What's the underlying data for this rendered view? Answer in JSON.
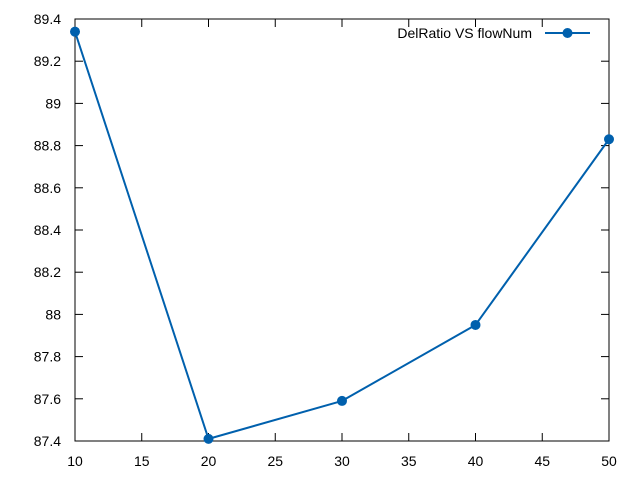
{
  "chart_data": {
    "type": "line",
    "title": "",
    "xlabel": "",
    "ylabel": "",
    "x": [
      10,
      20,
      30,
      40,
      50
    ],
    "series": [
      {
        "name": "DelRatio VS flowNum",
        "values": [
          89.34,
          87.41,
          87.59,
          87.95,
          88.83
        ],
        "color": "#0060ad"
      }
    ],
    "xlim": [
      10,
      50
    ],
    "ylim": [
      87.4,
      89.4
    ],
    "xticks": [
      10,
      15,
      20,
      25,
      30,
      35,
      40,
      45,
      50
    ],
    "yticks": [
      87.4,
      87.6,
      87.8,
      88,
      88.2,
      88.4,
      88.6,
      88.8,
      89,
      89.2,
      89.4
    ],
    "xtick_labels": [
      "10",
      "15",
      "20",
      "25",
      "30",
      "35",
      "40",
      "45",
      "50"
    ],
    "ytick_labels": [
      "87.4",
      "87.6",
      "87.8",
      "88",
      "88.2",
      "88.4",
      "88.6",
      "88.8",
      "89",
      "89.2",
      "89.4"
    ],
    "grid": false,
    "legend_position": "top-right",
    "marker": "circle"
  }
}
